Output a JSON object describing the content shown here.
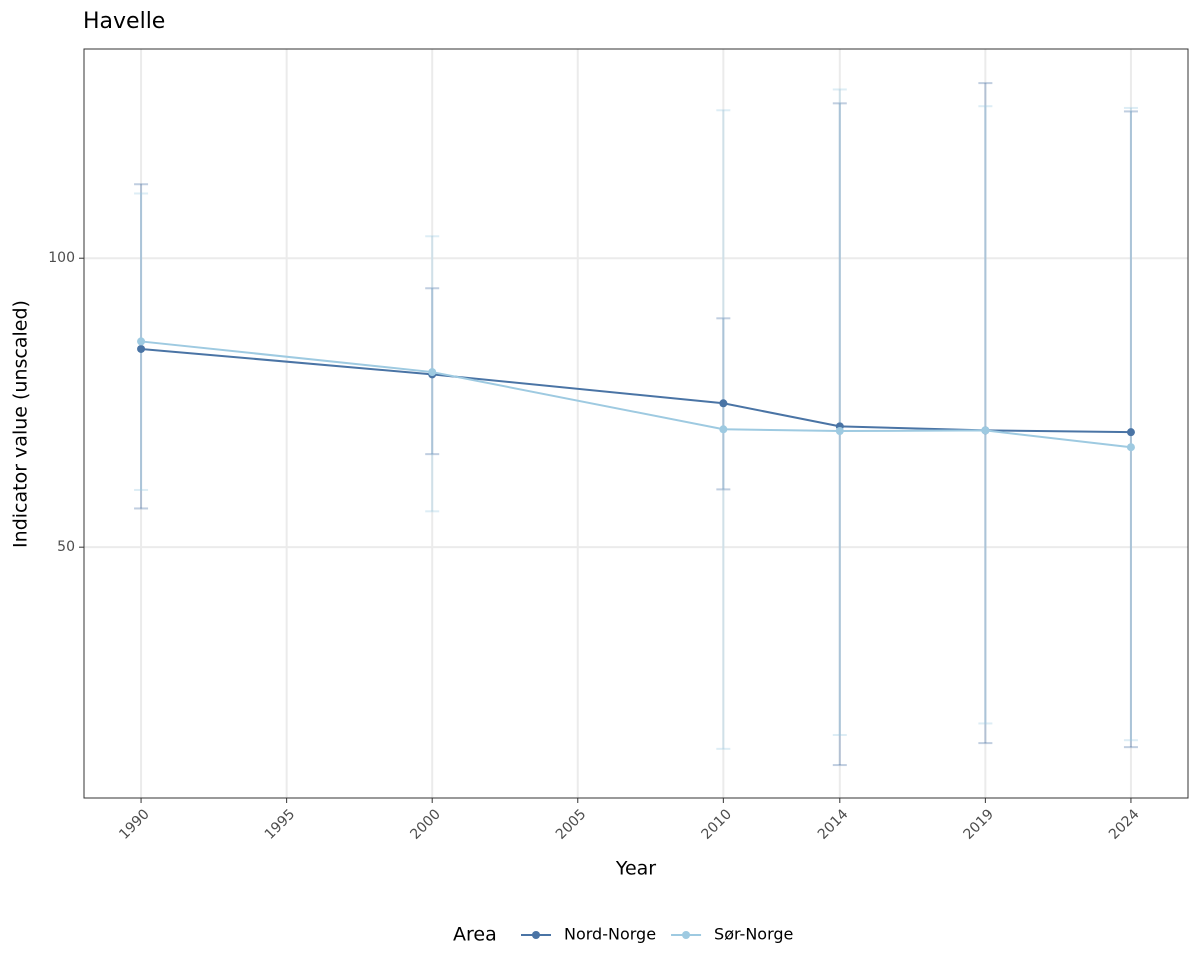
{
  "chart_data": {
    "type": "line",
    "title": "Havelle",
    "x_label": "Year",
    "y_label": "Indicator value (unscaled)",
    "legend_title": "Area",
    "legend_position": "bottom",
    "grid": true,
    "xlim": [
      1988.04,
      2025.96
    ],
    "xticks": [
      1990,
      1995,
      2000,
      2005,
      2010,
      2014,
      2019,
      2024
    ],
    "ylim": [
      6.6,
      136.2
    ],
    "yticks": [
      50,
      100
    ],
    "x": [
      1990,
      2000,
      2010,
      2014,
      2019,
      2024
    ],
    "series": [
      {
        "name": "Nord-Norge",
        "color": "#4a74a5",
        "values": [
          84.3,
          79.9,
          74.9,
          70.9,
          70.2,
          69.9
        ],
        "lower": [
          56.7,
          66.1,
          60.0,
          12.3,
          16.1,
          15.4
        ],
        "upper": [
          112.8,
          94.8,
          89.6,
          126.8,
          130.3,
          125.4
        ]
      },
      {
        "name": "Sør-Norge",
        "color": "#9ecae1",
        "values": [
          85.6,
          80.3,
          70.4,
          70.1,
          70.2,
          67.3
        ],
        "lower": [
          59.9,
          56.2,
          15.1,
          17.5,
          19.5,
          16.6
        ],
        "upper": [
          111.2,
          103.8,
          125.6,
          129.2,
          126.3,
          126.0
        ]
      }
    ]
  }
}
